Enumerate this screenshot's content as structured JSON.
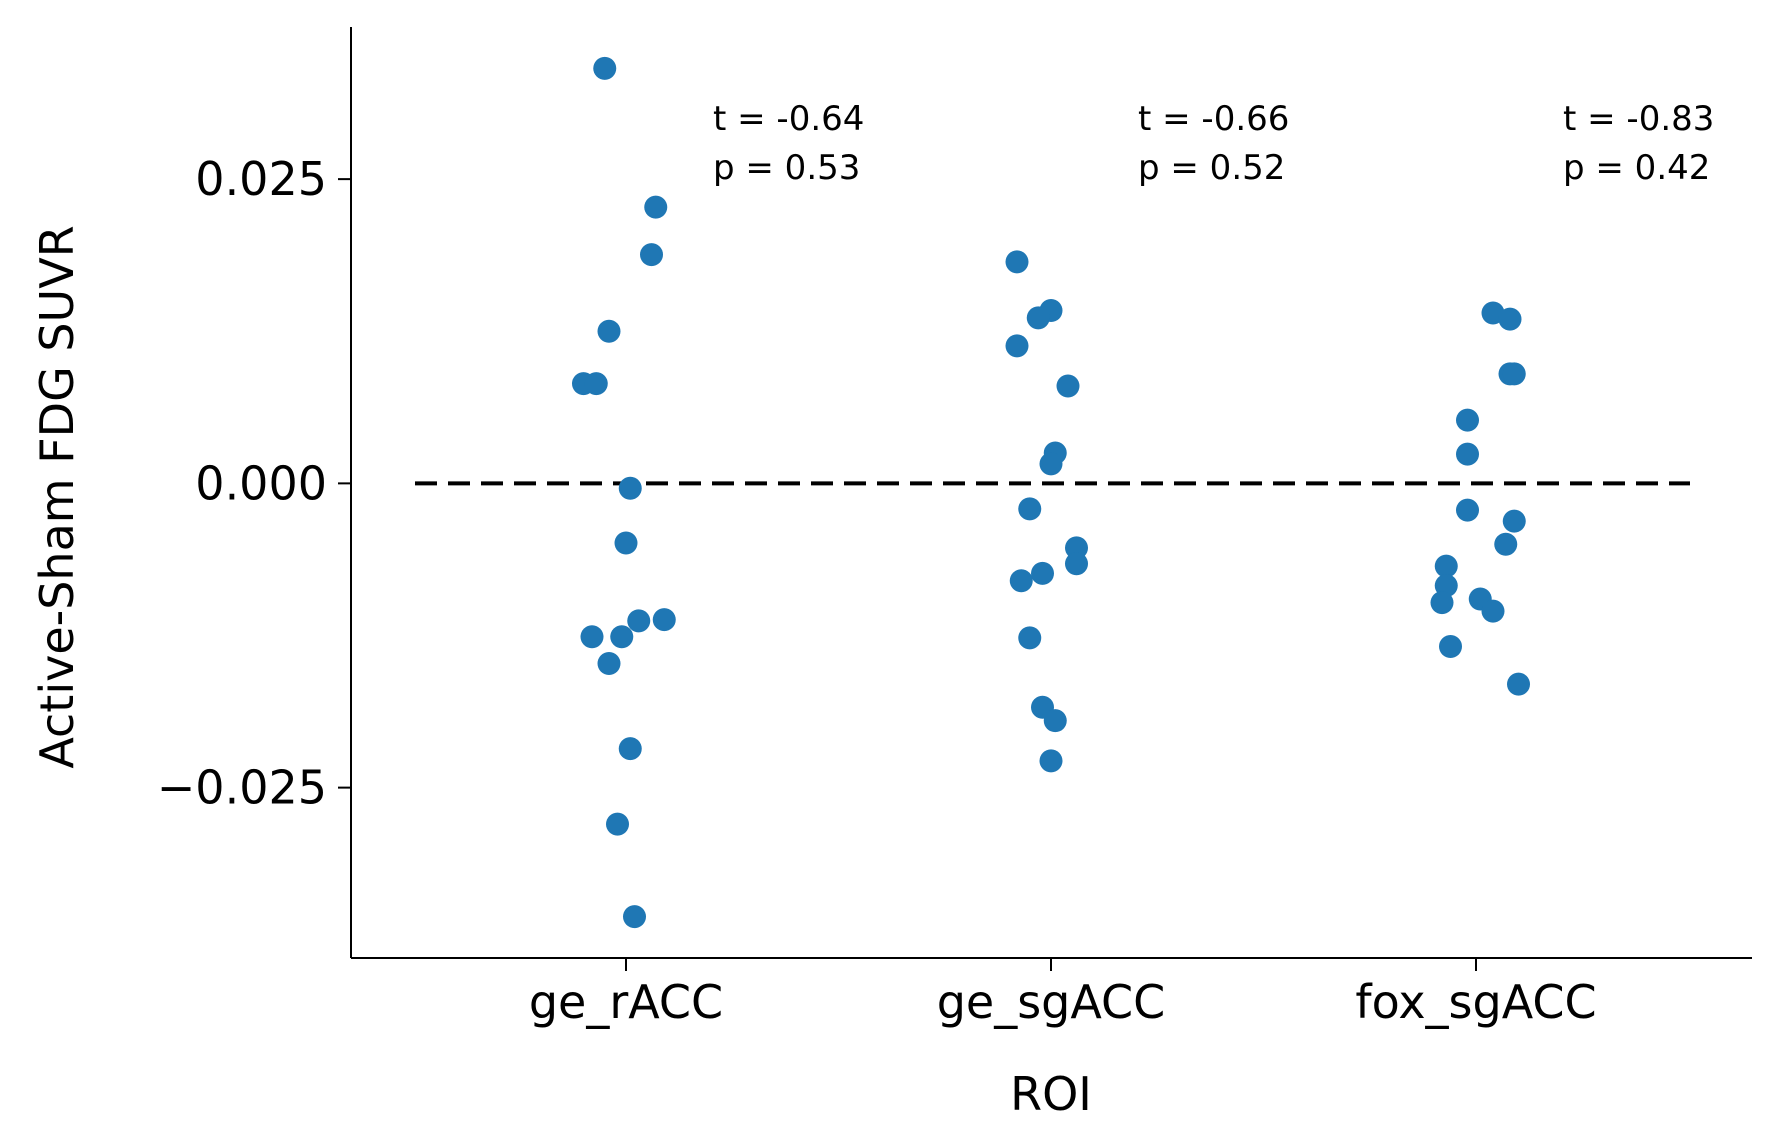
{
  "chart_data": {
    "type": "scatter",
    "title": "",
    "xlabel": "ROI",
    "ylabel": "Active-Sham FDG SUVR",
    "categories": [
      "ge_rACC",
      "ge_sgACC",
      "fox_sgACC"
    ],
    "yticks": [
      "−0.025",
      "0.000",
      "0.025"
    ],
    "ytick_values": [
      -0.025,
      0.0,
      0.025
    ],
    "ylim": [
      -0.039,
      0.0375
    ],
    "reference_line": {
      "y": 0.0,
      "style": "dashed",
      "color": "#000000"
    },
    "point_color": "#1f77b4",
    "grid": false,
    "legend": "none",
    "series": [
      {
        "category": "ge_rACC",
        "points": [
          {
            "jitter": -0.05,
            "y": 0.0341
          },
          {
            "jitter": 0.07,
            "y": 0.0227
          },
          {
            "jitter": 0.06,
            "y": 0.0188
          },
          {
            "jitter": -0.04,
            "y": 0.0125
          },
          {
            "jitter": -0.1,
            "y": 0.0082
          },
          {
            "jitter": -0.07,
            "y": 0.0082
          },
          {
            "jitter": 0.01,
            "y": -0.0004
          },
          {
            "jitter": 0.0,
            "y": -0.0049
          },
          {
            "jitter": -0.08,
            "y": -0.0126
          },
          {
            "jitter": -0.01,
            "y": -0.0126
          },
          {
            "jitter": 0.03,
            "y": -0.0113
          },
          {
            "jitter": 0.09,
            "y": -0.0112
          },
          {
            "jitter": -0.04,
            "y": -0.0148
          },
          {
            "jitter": 0.01,
            "y": -0.0218
          },
          {
            "jitter": -0.02,
            "y": -0.028
          },
          {
            "jitter": 0.02,
            "y": -0.0356
          }
        ],
        "annotation": {
          "t": "t = -0.64",
          "p": "p = 0.53"
        }
      },
      {
        "category": "ge_sgACC",
        "points": [
          {
            "jitter": -0.08,
            "y": 0.0182
          },
          {
            "jitter": 0.0,
            "y": 0.0142
          },
          {
            "jitter": -0.03,
            "y": 0.0136
          },
          {
            "jitter": -0.08,
            "y": 0.0113
          },
          {
            "jitter": 0.04,
            "y": 0.008
          },
          {
            "jitter": 0.01,
            "y": 0.0025
          },
          {
            "jitter": 0.0,
            "y": 0.0016
          },
          {
            "jitter": -0.05,
            "y": -0.0021
          },
          {
            "jitter": 0.06,
            "y": -0.0053
          },
          {
            "jitter": 0.06,
            "y": -0.0066
          },
          {
            "jitter": -0.02,
            "y": -0.0074
          },
          {
            "jitter": -0.07,
            "y": -0.008
          },
          {
            "jitter": -0.05,
            "y": -0.0127
          },
          {
            "jitter": -0.02,
            "y": -0.0184
          },
          {
            "jitter": 0.01,
            "y": -0.0195
          },
          {
            "jitter": 0.0,
            "y": -0.0228
          }
        ],
        "annotation": {
          "t": "t = -0.66",
          "p": "p = 0.52"
        }
      },
      {
        "category": "fox_sgACC",
        "points": [
          {
            "jitter": 0.04,
            "y": 0.014
          },
          {
            "jitter": 0.08,
            "y": 0.0135
          },
          {
            "jitter": 0.08,
            "y": 0.009
          },
          {
            "jitter": 0.09,
            "y": 0.009
          },
          {
            "jitter": -0.02,
            "y": 0.0052
          },
          {
            "jitter": -0.02,
            "y": 0.0024
          },
          {
            "jitter": -0.02,
            "y": -0.0022
          },
          {
            "jitter": 0.09,
            "y": -0.0031
          },
          {
            "jitter": 0.07,
            "y": -0.005
          },
          {
            "jitter": -0.07,
            "y": -0.0068
          },
          {
            "jitter": -0.07,
            "y": -0.0084
          },
          {
            "jitter": 0.01,
            "y": -0.0095
          },
          {
            "jitter": -0.08,
            "y": -0.0098
          },
          {
            "jitter": 0.04,
            "y": -0.0105
          },
          {
            "jitter": -0.06,
            "y": -0.0134
          },
          {
            "jitter": 0.1,
            "y": -0.0165
          }
        ],
        "annotation": {
          "t": "t = -0.83",
          "p": "p = 0.42"
        }
      }
    ]
  }
}
